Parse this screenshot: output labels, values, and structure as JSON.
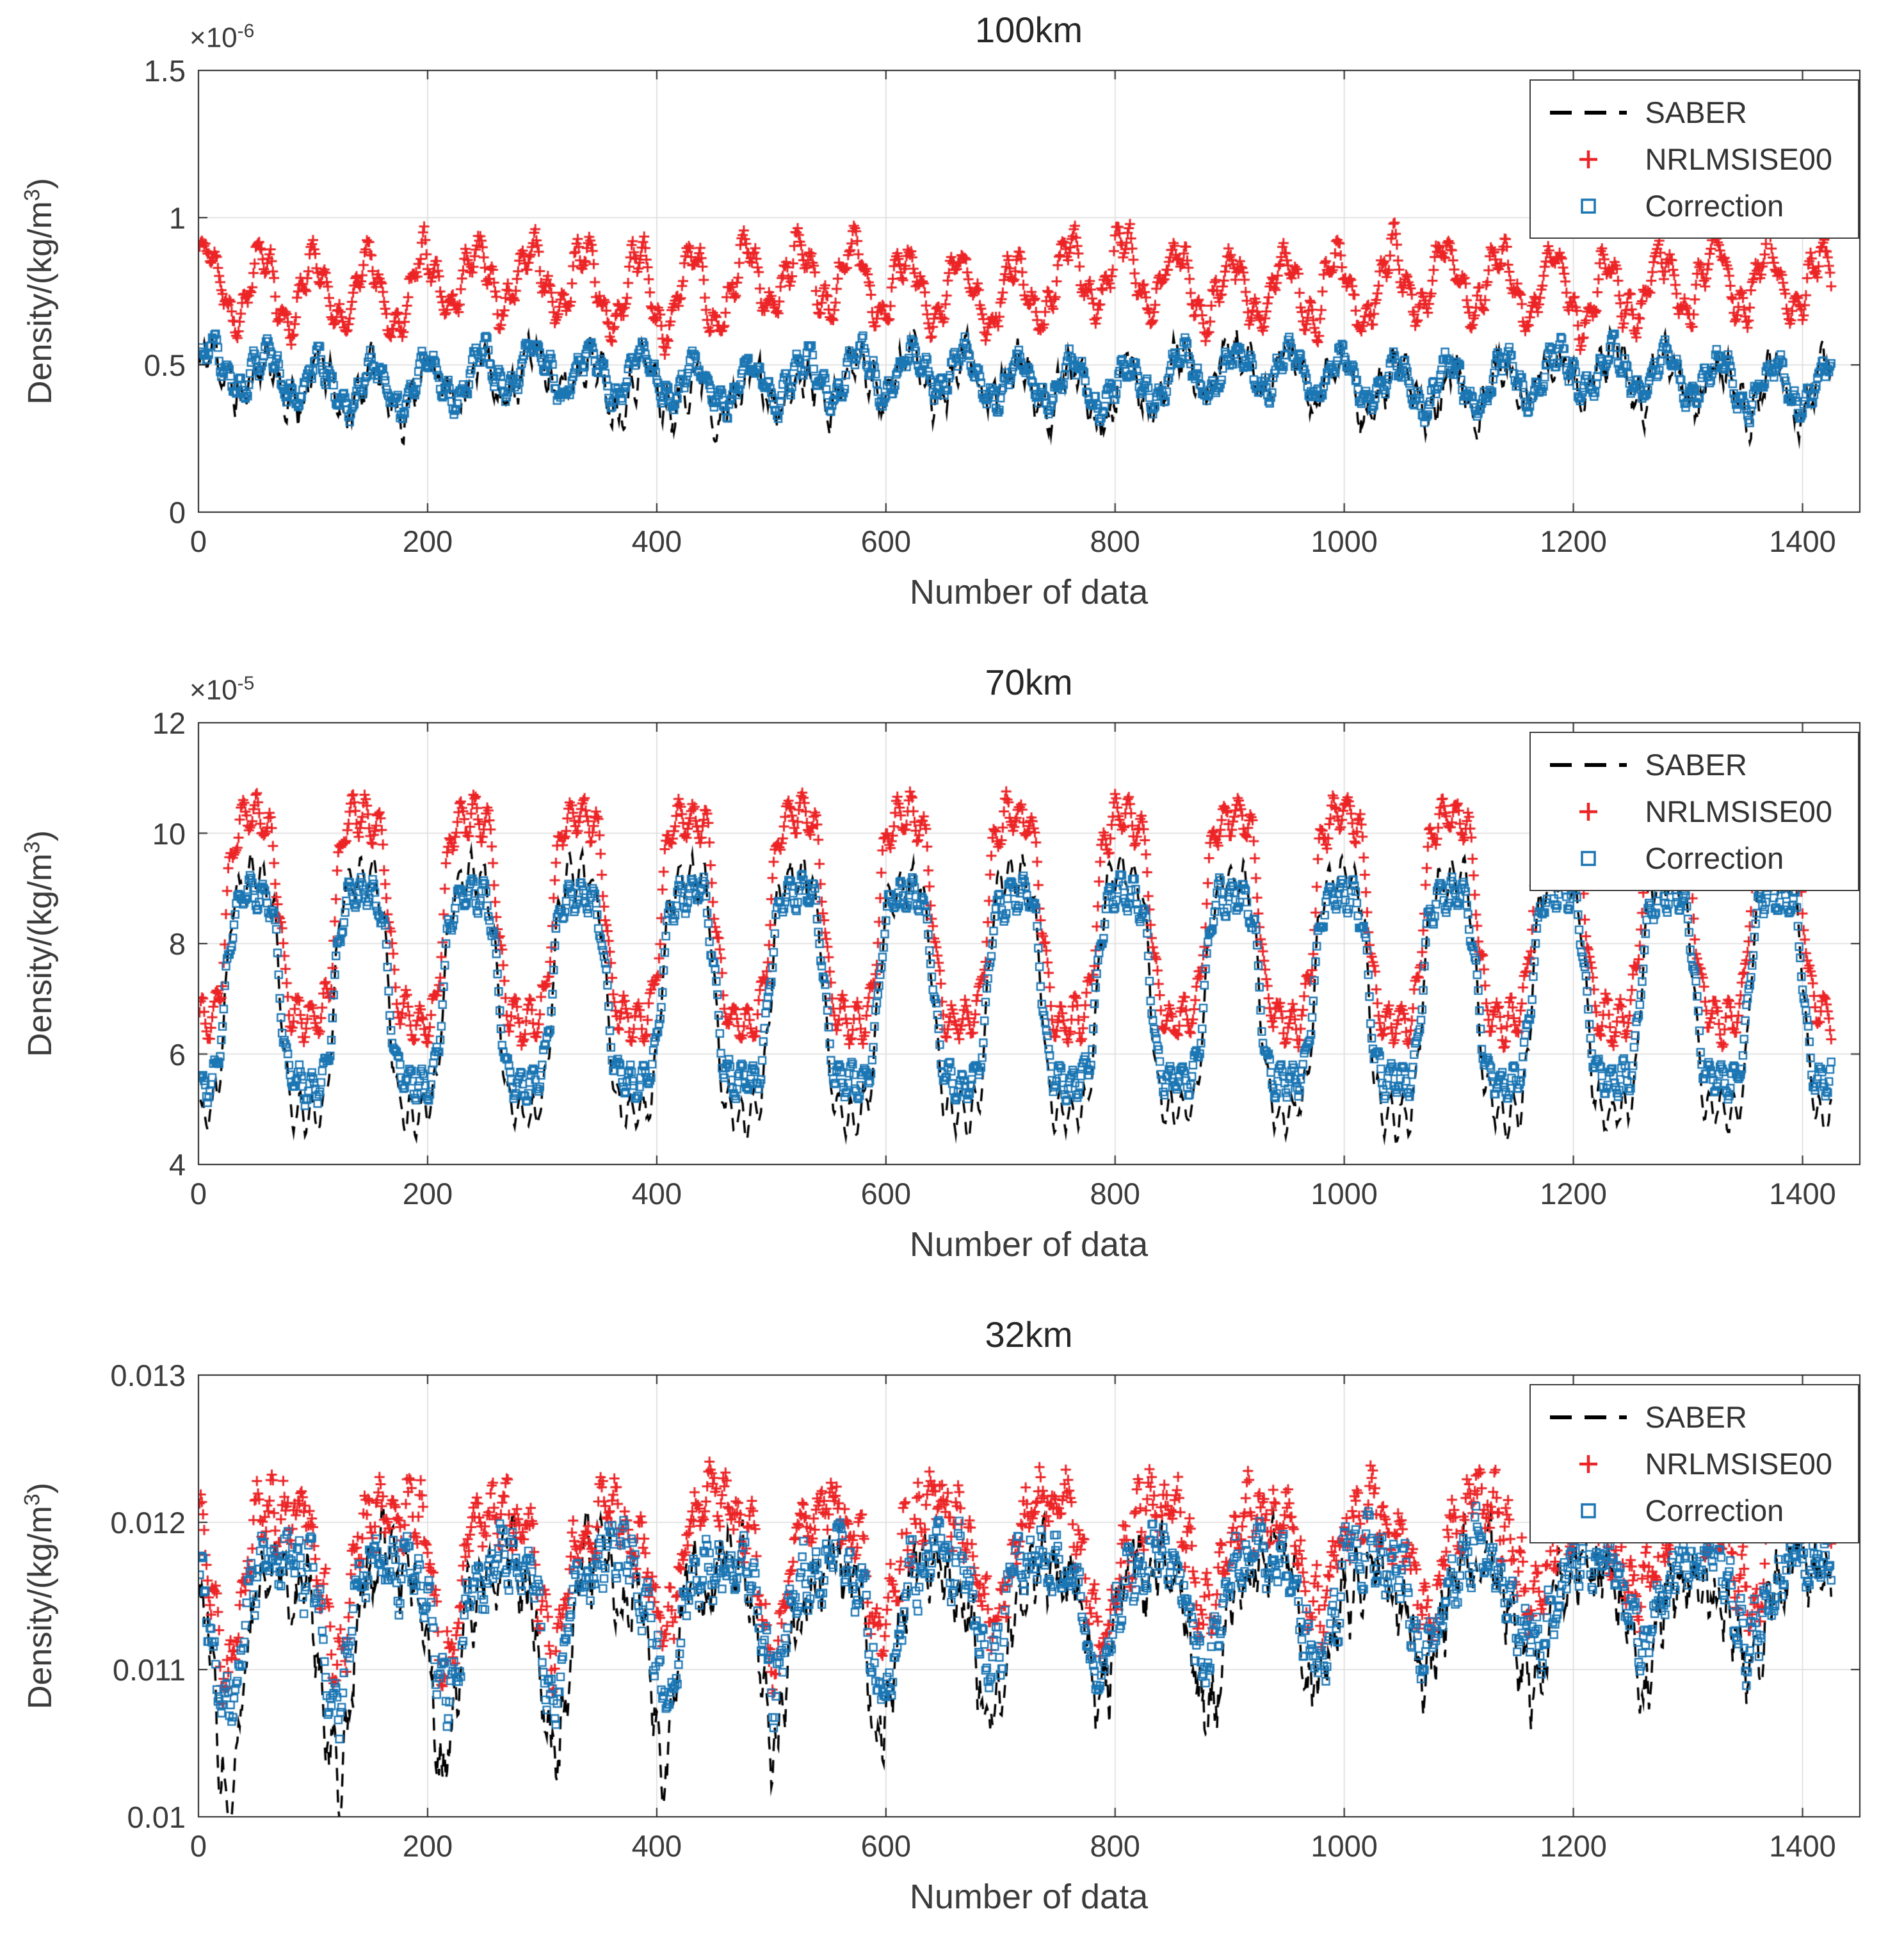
{
  "figure_background": "#ffffff",
  "accent_colors": {
    "saber_black": "#000000",
    "nrlmsise_red": "#ec2426",
    "correction_blue": "#1b76b4"
  },
  "chart_data": [
    {
      "type": "line",
      "title": "100km",
      "xlabel": "Number of data",
      "ylabel": "Density/(kg/m³)",
      "ylabel_main": "Density/(kg/m",
      "ylabel_sup": "3",
      "ylabel_end": ")",
      "y_scale_base": "×10",
      "y_scale_exp": "-6",
      "xlim": [
        0,
        1450
      ],
      "ylim": [
        0,
        1.5
      ],
      "xticks": [
        0,
        200,
        400,
        600,
        800,
        1000,
        1200,
        1400
      ],
      "xtick_labels": [
        "0",
        "200",
        "400",
        "600",
        "800",
        "1000",
        "1200",
        "1400"
      ],
      "yticks": [
        0,
        0.5,
        1,
        1.5
      ],
      "ytick_labels": [
        "0",
        "0.5",
        "1",
        "1.5"
      ],
      "grid": true,
      "legend_position": "top-right",
      "n_points": 1425,
      "series": [
        {
          "name": "SABER",
          "color": "#000000",
          "marker": "dashed-line",
          "model": {
            "base": 0.44,
            "env_amp": 0.075,
            "env_period": 47,
            "env_phase": 0,
            "wig_amp": 0.04,
            "wig_period": 11.3,
            "slow_amp": 0.035,
            "slow_period": 310,
            "noise": 0.09,
            "seed": 11
          }
        },
        {
          "name": "NRLMSISE00",
          "color": "#ec2426",
          "marker": "plus",
          "model": {
            "base": 0.77,
            "env_amp": 0.115,
            "env_period": 47,
            "env_phase": 4,
            "wig_amp": 0.05,
            "wig_period": 12.1,
            "slow_amp": 0.03,
            "slow_period": 270,
            "noise": 0.05,
            "seed": 22
          }
        },
        {
          "name": "Correction",
          "color": "#1b76b4",
          "marker": "open-square",
          "model": {
            "base": 0.455,
            "env_amp": 0.075,
            "env_period": 47,
            "env_phase": 0,
            "wig_amp": 0.032,
            "wig_period": 11.3,
            "slow_amp": 0.03,
            "slow_period": 310,
            "noise": 0.042,
            "seed": 33
          }
        }
      ]
    },
    {
      "type": "line",
      "title": "70km",
      "xlabel": "Number of data",
      "ylabel": "Density/(kg/m³)",
      "ylabel_main": "Density/(kg/m",
      "ylabel_sup": "3",
      "ylabel_end": ")",
      "y_scale_base": "×10",
      "y_scale_exp": "-5",
      "xlim": [
        0,
        1450
      ],
      "ylim": [
        4,
        12
      ],
      "xticks": [
        0,
        200,
        400,
        600,
        800,
        1000,
        1200,
        1400
      ],
      "xtick_labels": [
        "0",
        "200",
        "400",
        "600",
        "800",
        "1000",
        "1200",
        "1400"
      ],
      "yticks": [
        4,
        6,
        8,
        10,
        12
      ],
      "ytick_labels": [
        "4",
        "6",
        "8",
        "10",
        "12"
      ],
      "grid": true,
      "legend_position": "top-right",
      "n_points": 1425,
      "series": [
        {
          "name": "SABER",
          "color": "#000000",
          "marker": "dashed-line",
          "model": {
            "base": 7.05,
            "env_amp": 2.15,
            "env_period": 95,
            "env_phase": -23.75,
            "env_shape": "tanh",
            "wig_amp": 0.3,
            "wig_period": 10.7,
            "noise": 0.26,
            "seed": 44
          }
        },
        {
          "name": "NRLMSISE00",
          "color": "#ec2426",
          "marker": "plus",
          "model": {
            "base": 8.45,
            "env_amp": 1.85,
            "env_period": 95,
            "env_phase": -23.75,
            "env_shape": "tanh",
            "wig_amp": 0.33,
            "wig_period": 11.9,
            "noise": 0.2,
            "seed": 55
          }
        },
        {
          "name": "Correction",
          "color": "#1b76b4",
          "marker": "open-square",
          "model": {
            "base": 7.2,
            "env_amp": 1.72,
            "env_period": 95,
            "env_phase": -23.75,
            "env_shape": "tanh",
            "wig_amp": 0.27,
            "wig_period": 10.7,
            "noise": 0.18,
            "seed": 66
          }
        }
      ]
    },
    {
      "type": "line",
      "title": "32km",
      "xlabel": "Number of data",
      "ylabel": "Density/(kg/m³)",
      "ylabel_main": "Density/(kg/m",
      "ylabel_sup": "3",
      "ylabel_end": ")",
      "y_scale_base": "",
      "y_scale_exp": "",
      "xlim": [
        0,
        1450
      ],
      "ylim": [
        0.01,
        0.013
      ],
      "xticks": [
        0,
        200,
        400,
        600,
        800,
        1000,
        1200,
        1400
      ],
      "xtick_labels": [
        "0",
        "200",
        "400",
        "600",
        "800",
        "1000",
        "1200",
        "1400"
      ],
      "yticks": [
        0.01,
        0.011,
        0.012,
        0.013
      ],
      "ytick_labels": [
        "0.01",
        "0.011",
        "0.012",
        "0.013"
      ],
      "grid": true,
      "legend_position": "top-right",
      "n_points": 1425,
      "series": [
        {
          "name": "SABER",
          "color": "#000000",
          "marker": "dashed-line",
          "model": {
            "base": 0.01152,
            "env_amp": 0.00018,
            "env_period": 95,
            "env_phase": -50,
            "dip_amp": 0.0011,
            "dip_pow": 2,
            "dip_decay": 0.00055,
            "wig_amp": 0.00012,
            "wig_period": 10.5,
            "noise": 0.00035,
            "seed": 77
          }
        },
        {
          "name": "NRLMSISE00",
          "color": "#ec2426",
          "marker": "plus",
          "model": {
            "base": 0.01196,
            "env_amp": 0.00016,
            "env_period": 95,
            "env_phase": -50,
            "dip_amp": 0.0008,
            "dip_pow": 2,
            "dip_decay": 0.0005,
            "wig_amp": 0.00013,
            "wig_period": 12,
            "noise": 0.00026,
            "seed": 88
          }
        },
        {
          "name": "Correction",
          "color": "#1b76b4",
          "marker": "open-square",
          "model": {
            "base": 0.01163,
            "env_amp": 0.00014,
            "env_period": 95,
            "env_phase": -50,
            "dip_amp": 0.0008,
            "dip_pow": 2,
            "dip_decay": 0.0005,
            "wig_amp": 0.00011,
            "wig_period": 10.5,
            "noise": 0.00026,
            "seed": 99
          }
        }
      ]
    }
  ]
}
